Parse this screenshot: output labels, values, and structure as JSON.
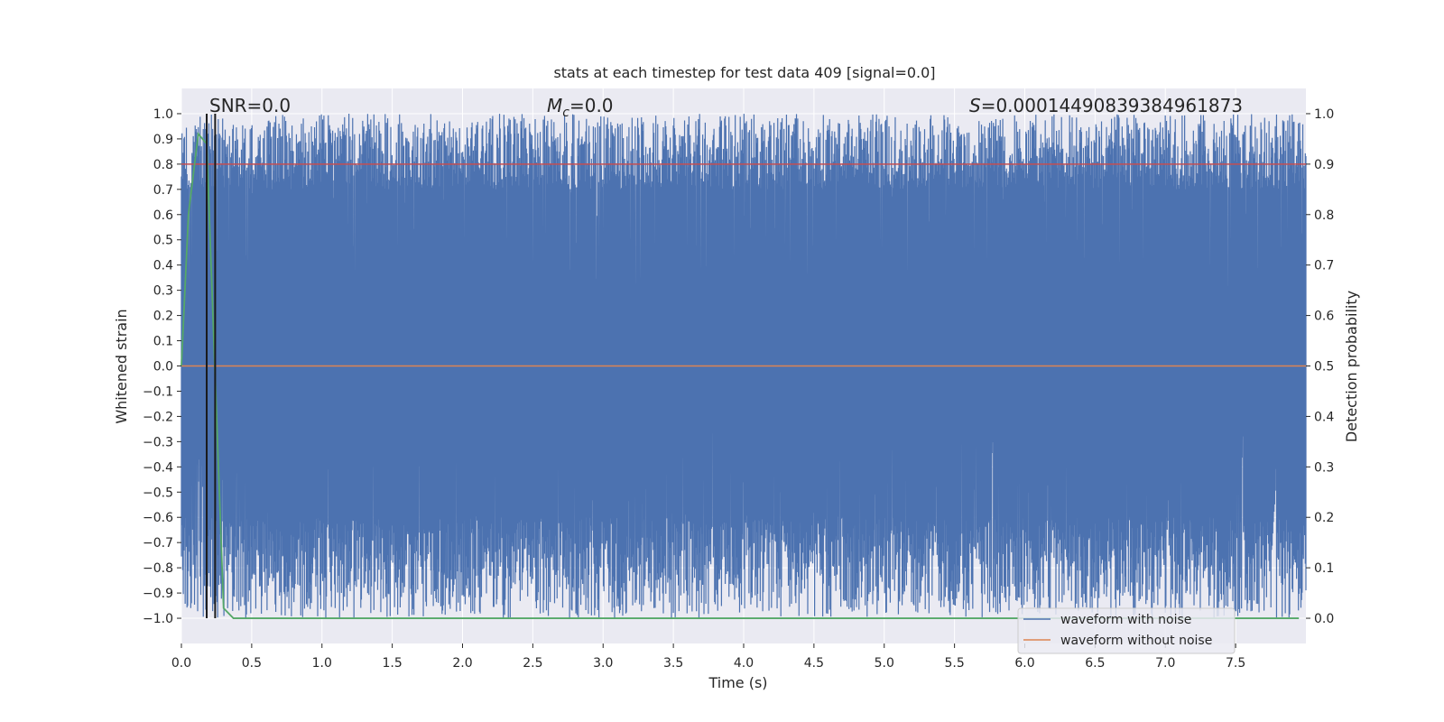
{
  "chart_data": {
    "type": "line",
    "title": "stats at each timestep for test data 409 [signal=0.0]",
    "xlabel": "Time (s)",
    "ylabel": "Whitened strain",
    "y2label": "Detection probability",
    "xlim": [
      0.0,
      8.0
    ],
    "ylim": [
      -1.1,
      1.1
    ],
    "y2lim": [
      -0.05,
      1.05
    ],
    "x_ticks": [
      0.0,
      0.5,
      1.0,
      1.5,
      2.0,
      2.5,
      3.0,
      3.5,
      4.0,
      4.5,
      5.0,
      5.5,
      6.0,
      6.5,
      7.0,
      7.5
    ],
    "x_tick_labels": [
      "0.0",
      "0.5",
      "1.0",
      "1.5",
      "2.0",
      "2.5",
      "3.0",
      "3.5",
      "4.0",
      "4.5",
      "5.0",
      "5.5",
      "6.0",
      "6.5",
      "7.0",
      "7.5"
    ],
    "y_ticks": [
      1.0,
      0.9,
      0.8,
      0.7,
      0.6,
      0.5,
      0.4,
      0.3,
      0.2,
      0.1,
      0.0,
      -0.1,
      -0.2,
      -0.3,
      -0.4,
      -0.5,
      -0.6,
      -0.7,
      -0.8,
      -0.9,
      -1.0
    ],
    "y_tick_labels": [
      "1.0",
      "0.9",
      "0.8",
      "0.7",
      "0.6",
      "0.5",
      "0.4",
      "0.3",
      "0.2",
      "0.1",
      "0.0",
      "−0.1",
      "−0.2",
      "−0.3",
      "−0.4",
      "−0.5",
      "−0.6",
      "−0.7",
      "−0.8",
      "−0.9",
      "−1.0"
    ],
    "y2_ticks": [
      1.0,
      0.9,
      0.8,
      0.7,
      0.6,
      0.5,
      0.4,
      0.3,
      0.2,
      0.1,
      0.0
    ],
    "y2_tick_labels": [
      "1.0",
      "0.9",
      "0.8",
      "0.7",
      "0.6",
      "0.5",
      "0.4",
      "0.3",
      "0.2",
      "0.1",
      "0.0"
    ],
    "grid": true,
    "legend_placement": "lower-right",
    "series": [
      {
        "name": "waveform with noise",
        "color": "#4c72b0",
        "axis": "left",
        "description_range": [
          -1.0,
          1.0
        ],
        "x_range": [
          0.0,
          8.0
        ]
      },
      {
        "name": "waveform without noise",
        "color": "#dd8452",
        "axis": "left",
        "x": [
          0.0,
          8.0
        ],
        "values": [
          0.0,
          0.0
        ]
      },
      {
        "color": "#55a868",
        "axis": "right",
        "x": [
          0.0,
          0.05,
          0.12,
          0.18,
          0.3,
          0.37,
          7.95
        ],
        "values": [
          0.5,
          0.8,
          0.96,
          0.94,
          0.02,
          0.0,
          0.0
        ]
      }
    ],
    "threshold_line": {
      "color": "#c44e52",
      "axis": "right",
      "value": 0.9
    },
    "markers": [
      {
        "color": "#1a1a1a",
        "x": 0.18
      },
      {
        "color": "#1a1a1a",
        "x": 0.24
      }
    ],
    "annotations": {
      "snr": "SNR=0.0",
      "mc_symbol": "M",
      "mc_sub": "c",
      "mc_value": "=0.0",
      "s_symbol": "S",
      "s_value": "=0.00014490839384961873"
    }
  }
}
